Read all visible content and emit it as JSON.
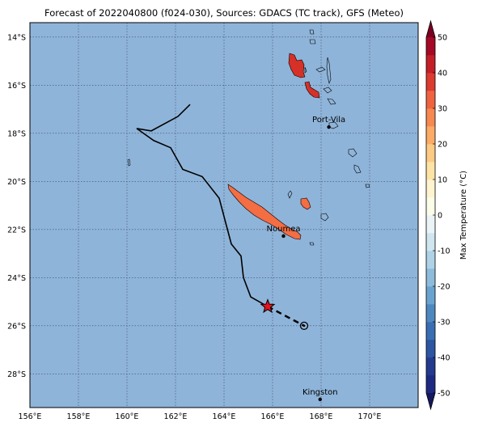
{
  "title": "Forecast of 2022040800 (f024-030), Sources: GDACS (TC track), GFS (Meteo)",
  "map": {
    "lon_range": [
      156,
      172
    ],
    "lat_range": [
      -29.4,
      -13.4
    ],
    "lon_ticks": [
      {
        "value": 156,
        "label": "156°E"
      },
      {
        "value": 158,
        "label": "158°E"
      },
      {
        "value": 160,
        "label": "160°E"
      },
      {
        "value": 162,
        "label": "162°E"
      },
      {
        "value": 164,
        "label": "164°E"
      },
      {
        "value": 166,
        "label": "166°E"
      },
      {
        "value": 168,
        "label": "168°E"
      },
      {
        "value": 170,
        "label": "170°E"
      }
    ],
    "lat_ticks": [
      {
        "value": -14,
        "label": "14°S"
      },
      {
        "value": -16,
        "label": "16°S"
      },
      {
        "value": -18,
        "label": "18°S"
      },
      {
        "value": -20,
        "label": "20°S"
      },
      {
        "value": -22,
        "label": "22°S"
      },
      {
        "value": -24,
        "label": "24°S"
      },
      {
        "value": -26,
        "label": "26°S"
      },
      {
        "value": -28,
        "label": "28°S"
      }
    ],
    "grid": "dotted",
    "ocean_color": "#8fb4d9"
  },
  "cities": [
    {
      "name": "Port-Vila",
      "lon": 168.32,
      "lat": -17.74
    },
    {
      "name": "Noumea",
      "lon": 166.45,
      "lat": -22.27
    },
    {
      "name": "Kingston",
      "lon": 167.96,
      "lat": -29.06
    }
  ],
  "track": {
    "past": [
      [
        162.6,
        -16.8
      ],
      [
        162.1,
        -17.3
      ],
      [
        161.0,
        -17.9
      ],
      [
        160.4,
        -17.8
      ],
      [
        161.1,
        -18.3
      ],
      [
        161.8,
        -18.6
      ],
      [
        162.3,
        -19.5
      ],
      [
        163.1,
        -19.8
      ],
      [
        163.8,
        -20.7
      ],
      [
        164.3,
        -22.6
      ],
      [
        164.7,
        -23.1
      ],
      [
        164.8,
        -24.0
      ],
      [
        165.1,
        -24.8
      ],
      [
        165.8,
        -25.2
      ]
    ],
    "current": [
      165.8,
      -25.2
    ],
    "forecast": [
      [
        165.8,
        -25.2
      ],
      [
        167.3,
        -26.0
      ]
    ],
    "forecast_point": [
      167.3,
      -26.0
    ]
  },
  "chart_data": {
    "type": "heatmap",
    "variable": "Max Temperature",
    "colorbar_label": "Max Temperature (°C)",
    "levels": [
      -50,
      -45,
      -40,
      -35,
      -30,
      -25,
      -20,
      -15,
      -10,
      -5,
      0,
      5,
      10,
      15,
      20,
      25,
      30,
      35,
      40,
      45,
      50
    ],
    "colorbar_ticks": [
      50,
      40,
      30,
      20,
      10,
      0,
      -10,
      -20,
      -30,
      -40,
      -50
    ],
    "colorbar_colors": [
      "#1e2a82",
      "#243a8f",
      "#2c55a2",
      "#3a6eb3",
      "#4e88c0",
      "#6aa3cf",
      "#8dbbdc",
      "#afd2e7",
      "#cfe5f0",
      "#eaf4f7",
      "#fbfde9",
      "#fff4cf",
      "#fee3a6",
      "#fdca83",
      "#fcab66",
      "#f78850",
      "#ef6341",
      "#dc3b2f",
      "#c41f27",
      "#a40a26"
    ],
    "over_color": "#7a0022",
    "under_color": "#16195e",
    "fields": [
      {
        "region": "New Caledonia",
        "value": 26
      },
      {
        "region": "Loyalty Islands (Lifou)",
        "value": 27
      },
      {
        "region": "Espiritu Santo",
        "value": 33
      },
      {
        "region": "Malakula",
        "value": 33
      }
    ]
  }
}
